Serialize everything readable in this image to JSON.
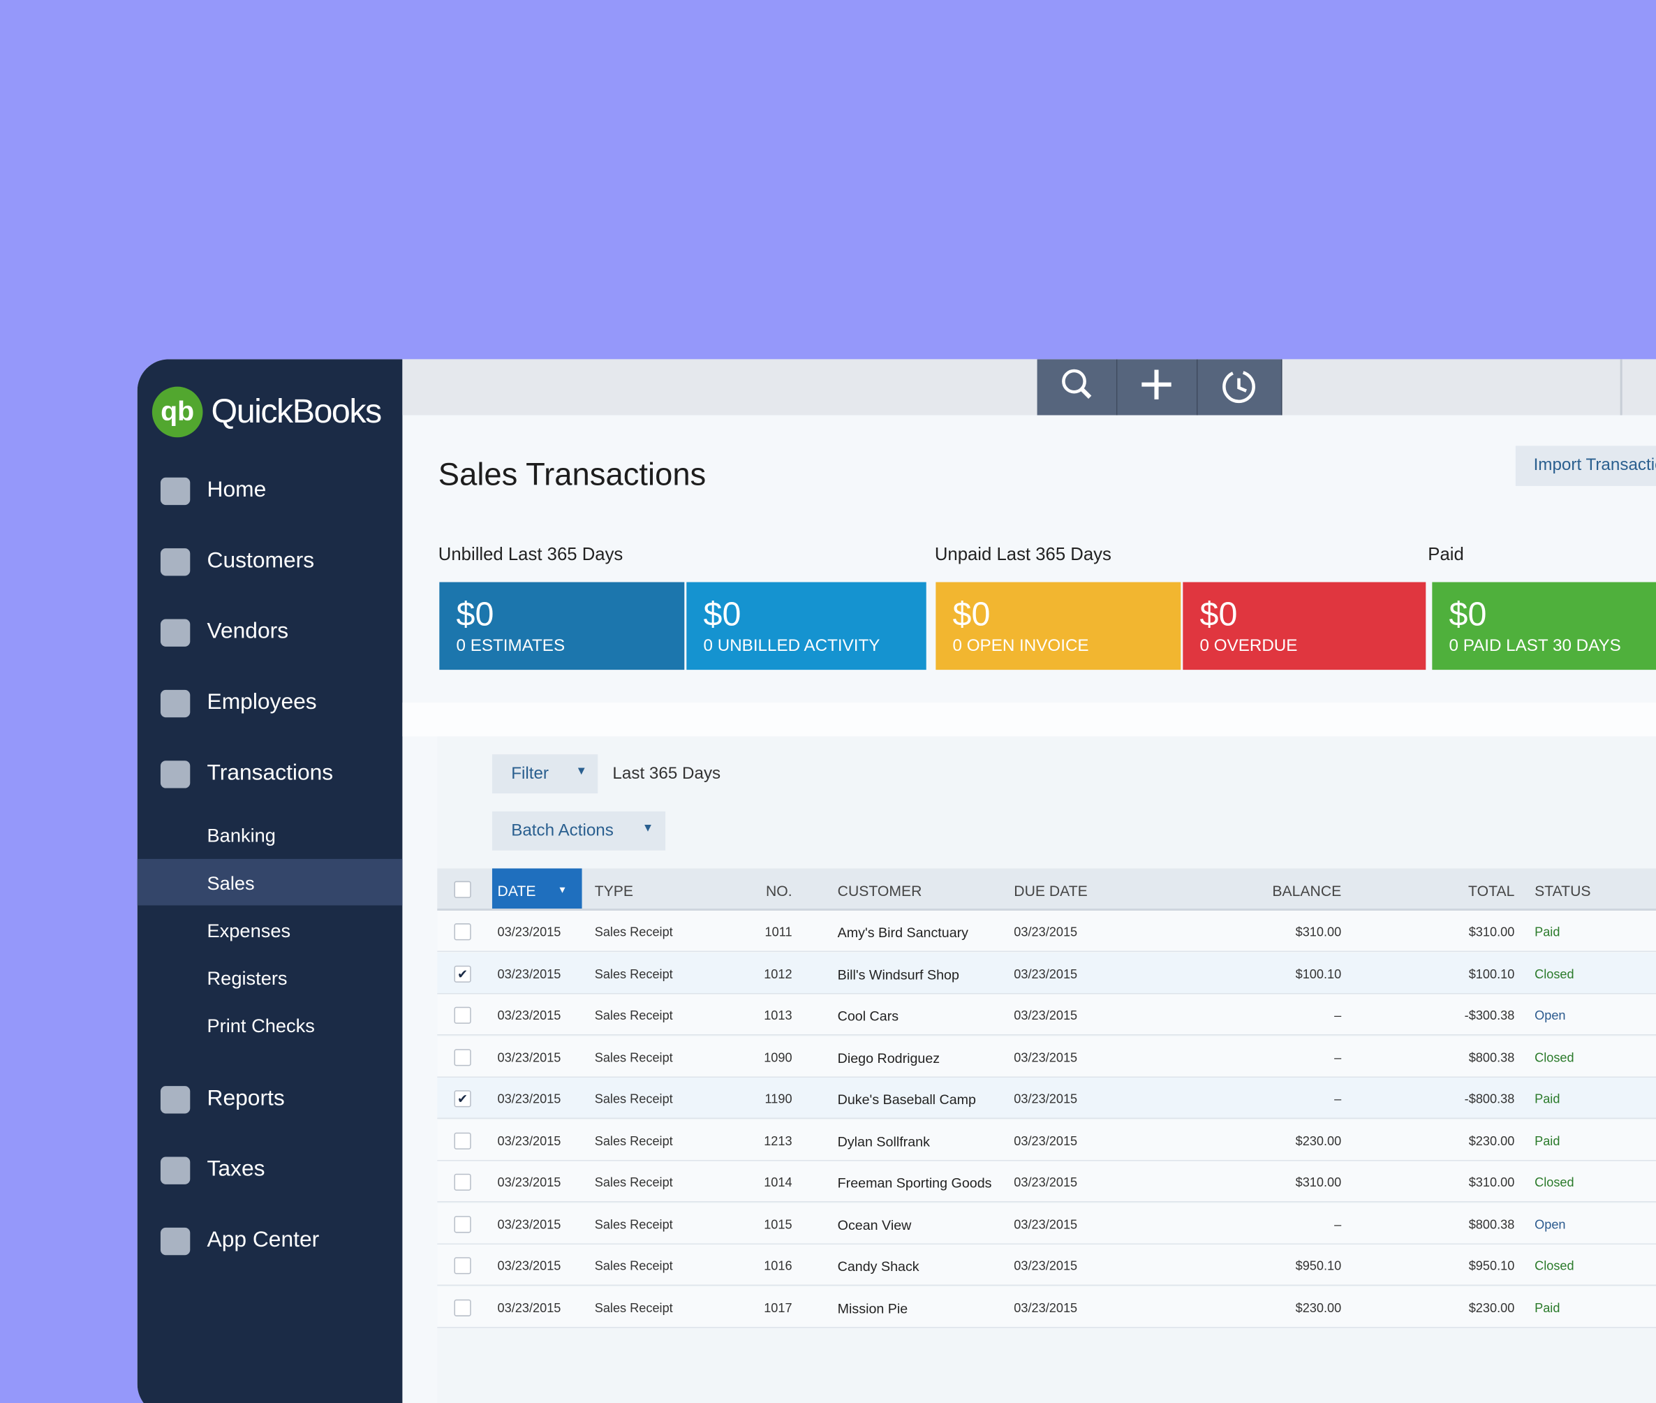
{
  "sidebar": {
    "logo": "QuickBooks",
    "nav": [
      {
        "label": "Home"
      },
      {
        "label": "Customers"
      },
      {
        "label": "Vendors"
      },
      {
        "label": "Employees"
      },
      {
        "label": "Transactions"
      }
    ],
    "subnav": [
      {
        "label": "Banking"
      },
      {
        "label": "Sales",
        "active": true
      },
      {
        "label": "Expenses"
      },
      {
        "label": "Registers"
      },
      {
        "label": "Print Checks"
      }
    ],
    "nav2": [
      {
        "label": "Reports"
      },
      {
        "label": "Taxes"
      },
      {
        "label": "App Center"
      }
    ]
  },
  "header": {
    "title": "Sales Transactions",
    "import_button": "Import Transactions"
  },
  "summary": {
    "groups": [
      "Unbilled Last 365 Days",
      "Unpaid Last 365 Days",
      "Paid"
    ],
    "tiles": [
      {
        "amount": "$0",
        "label": "0 ESTIMATES",
        "color": "#1c76ad"
      },
      {
        "amount": "$0",
        "label": "0 UNBILLED ACTIVITY",
        "color": "#1593d0"
      },
      {
        "amount": "$0",
        "label": "0 OPEN INVOICE",
        "color": "#f2b630"
      },
      {
        "amount": "$0",
        "label": "0 OVERDUE",
        "color": "#e0363f"
      },
      {
        "amount": "$0",
        "label": "0 PAID LAST 30 DAYS",
        "color": "#4fb03c"
      }
    ]
  },
  "filter": {
    "button": "Filter",
    "range": "Last 365 Days",
    "batch": "Batch Actions"
  },
  "table": {
    "columns": [
      "DATE",
      "TYPE",
      "NO.",
      "CUSTOMER",
      "DUE DATE",
      "BALANCE",
      "TOTAL",
      "STATUS"
    ],
    "rows": [
      {
        "checked": false,
        "cells": [
          "03/23/2015",
          "Sales Receipt",
          "1011",
          "Amy's Bird Sanctuary",
          "03/23/2015",
          "$310.00",
          "$310.00",
          "Paid"
        ]
      },
      {
        "checked": true,
        "cells": [
          "03/23/2015",
          "Sales Receipt",
          "1012",
          "Bill's Windsurf Shop",
          "03/23/2015",
          "$100.10",
          "$100.10",
          "Closed"
        ]
      },
      {
        "checked": false,
        "cells": [
          "03/23/2015",
          "Sales Receipt",
          "1013",
          "Cool Cars",
          "03/23/2015",
          "–",
          "-$300.38",
          "Open"
        ]
      },
      {
        "checked": false,
        "cells": [
          "03/23/2015",
          "Sales Receipt",
          "1090",
          "Diego Rodriguez",
          "03/23/2015",
          "–",
          "$800.38",
          "Closed"
        ]
      },
      {
        "checked": true,
        "cells": [
          "03/23/2015",
          "Sales Receipt",
          "1190",
          "Duke's Baseball Camp",
          "03/23/2015",
          "–",
          "-$800.38",
          "Paid"
        ]
      },
      {
        "checked": false,
        "cells": [
          "03/23/2015",
          "Sales Receipt",
          "1213",
          "Dylan Sollfrank",
          "03/23/2015",
          "$230.00",
          "$230.00",
          "Paid"
        ]
      },
      {
        "checked": false,
        "cells": [
          "03/23/2015",
          "Sales Receipt",
          "1014",
          "Freeman Sporting Goods",
          "03/23/2015",
          "$310.00",
          "$310.00",
          "Closed"
        ]
      },
      {
        "checked": false,
        "cells": [
          "03/23/2015",
          "Sales Receipt",
          "1015",
          "Ocean View",
          "03/23/2015",
          "–",
          "$800.38",
          "Open"
        ]
      },
      {
        "checked": false,
        "cells": [
          "03/23/2015",
          "Sales Receipt",
          "1016",
          "Candy Shack",
          "03/23/2015",
          "$950.10",
          "$950.10",
          "Closed"
        ]
      },
      {
        "checked": false,
        "cells": [
          "03/23/2015",
          "Sales Receipt",
          "1017",
          "Mission Pie",
          "03/23/2015",
          "$230.00",
          "$230.00",
          "Paid"
        ]
      }
    ]
  }
}
